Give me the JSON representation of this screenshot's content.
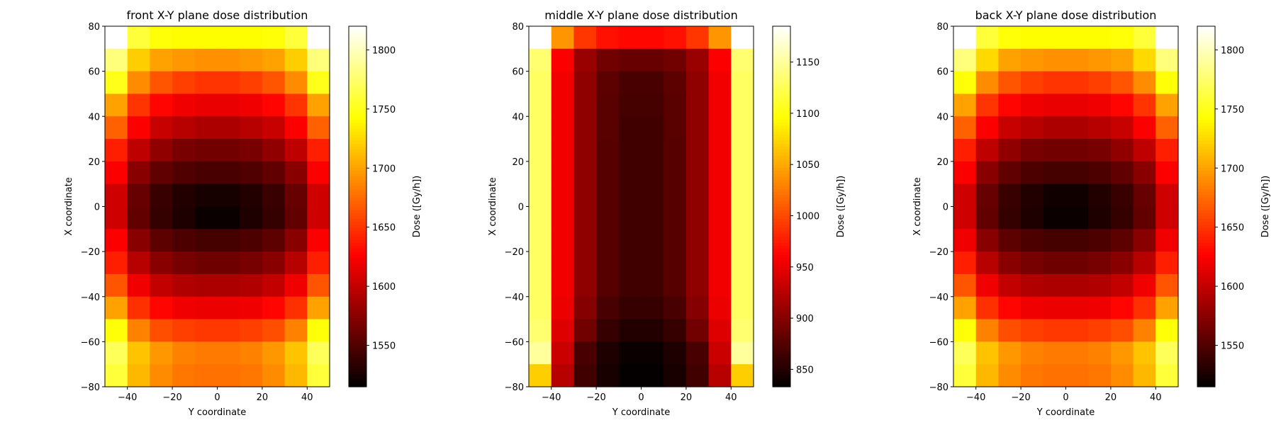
{
  "chart_data": [
    {
      "type": "heatmap",
      "title": "front X-Y plane dose distribution",
      "xlabel": "Y coordinate",
      "ylabel": "X coordinate",
      "colorbar_label": "Dose ([Gy/h])",
      "colormap": "hot",
      "xlim": [
        -50,
        50
      ],
      "ylim": [
        -80,
        80
      ],
      "xticks": [
        -40,
        -20,
        0,
        20,
        40
      ],
      "yticks": [
        -80,
        -60,
        -40,
        -20,
        0,
        20,
        40,
        60,
        80
      ],
      "colorbar_range": [
        1515,
        1820
      ],
      "colorbar_ticks": [
        1550,
        1600,
        1650,
        1700,
        1750,
        1800
      ],
      "cell_size": [
        10,
        10
      ],
      "rows_top_to_bottom": [
        [
          1820,
          1760,
          1745,
          1742,
          1742,
          1742,
          1742,
          1745,
          1760,
          1820
        ],
        [
          1780,
          1720,
          1700,
          1695,
          1692,
          1692,
          1695,
          1700,
          1720,
          1780
        ],
        [
          1750,
          1690,
          1665,
          1655,
          1650,
          1650,
          1655,
          1665,
          1690,
          1750
        ],
        [
          1700,
          1650,
          1628,
          1620,
          1617,
          1617,
          1620,
          1628,
          1650,
          1700
        ],
        [
          1670,
          1625,
          1602,
          1595,
          1590,
          1590,
          1595,
          1602,
          1625,
          1670
        ],
        [
          1640,
          1598,
          1578,
          1568,
          1565,
          1565,
          1568,
          1578,
          1598,
          1640
        ],
        [
          1625,
          1575,
          1557,
          1550,
          1547,
          1547,
          1550,
          1557,
          1575,
          1625
        ],
        [
          1605,
          1560,
          1540,
          1530,
          1525,
          1525,
          1530,
          1540,
          1560,
          1605
        ],
        [
          1605,
          1558,
          1538,
          1528,
          1520,
          1520,
          1528,
          1538,
          1558,
          1605
        ],
        [
          1625,
          1575,
          1555,
          1548,
          1545,
          1545,
          1548,
          1555,
          1575,
          1625
        ],
        [
          1640,
          1595,
          1575,
          1567,
          1563,
          1563,
          1567,
          1575,
          1595,
          1640
        ],
        [
          1665,
          1620,
          1600,
          1592,
          1590,
          1590,
          1592,
          1600,
          1620,
          1665
        ],
        [
          1700,
          1648,
          1628,
          1620,
          1618,
          1618,
          1620,
          1628,
          1648,
          1700
        ],
        [
          1745,
          1685,
          1662,
          1655,
          1652,
          1652,
          1655,
          1662,
          1685,
          1745
        ],
        [
          1770,
          1715,
          1695,
          1685,
          1682,
          1682,
          1685,
          1695,
          1715,
          1770
        ],
        [
          1760,
          1710,
          1690,
          1680,
          1678,
          1678,
          1680,
          1690,
          1710,
          1760
        ]
      ]
    },
    {
      "type": "heatmap",
      "title": "middle X-Y plane dose distribution",
      "xlabel": "Y coordinate",
      "ylabel": "X coordinate",
      "colorbar_label": "Dose ([Gy/h])",
      "colormap": "hot",
      "xlim": [
        -50,
        50
      ],
      "ylim": [
        -80,
        80
      ],
      "xticks": [
        -40,
        -20,
        0,
        20,
        40
      ],
      "yticks": [
        -80,
        -60,
        -40,
        -20,
        0,
        20,
        40,
        60,
        80
      ],
      "colorbar_range": [
        833,
        1185
      ],
      "colorbar_ticks": [
        850,
        900,
        950,
        1000,
        1050,
        1100,
        1150
      ],
      "cell_size": [
        10,
        10
      ],
      "rows_top_to_bottom": [
        [
          1185,
          1040,
          990,
          970,
          965,
          965,
          970,
          990,
          1040,
          1185
        ],
        [
          1135,
          960,
          910,
          890,
          885,
          885,
          890,
          910,
          960,
          1135
        ],
        [
          1130,
          955,
          905,
          880,
          870,
          870,
          880,
          905,
          955,
          1130
        ],
        [
          1130,
          955,
          905,
          878,
          868,
          868,
          878,
          905,
          955,
          1130
        ],
        [
          1130,
          955,
          905,
          878,
          866,
          866,
          878,
          905,
          955,
          1130
        ],
        [
          1130,
          955,
          905,
          877,
          865,
          865,
          877,
          905,
          955,
          1130
        ],
        [
          1130,
          955,
          905,
          877,
          865,
          865,
          877,
          905,
          955,
          1130
        ],
        [
          1130,
          955,
          905,
          877,
          865,
          865,
          877,
          905,
          955,
          1130
        ],
        [
          1130,
          955,
          905,
          877,
          865,
          865,
          877,
          905,
          955,
          1130
        ],
        [
          1130,
          955,
          905,
          877,
          865,
          865,
          877,
          905,
          955,
          1130
        ],
        [
          1130,
          955,
          905,
          877,
          865,
          865,
          877,
          905,
          955,
          1130
        ],
        [
          1130,
          955,
          905,
          877,
          865,
          865,
          877,
          905,
          955,
          1130
        ],
        [
          1130,
          952,
          900,
          870,
          860,
          860,
          870,
          900,
          952,
          1130
        ],
        [
          1135,
          945,
          890,
          860,
          850,
          850,
          860,
          890,
          945,
          1135
        ],
        [
          1150,
          935,
          870,
          848,
          838,
          838,
          848,
          870,
          935,
          1150
        ],
        [
          1070,
          925,
          865,
          845,
          835,
          835,
          845,
          865,
          925,
          1070
        ]
      ]
    },
    {
      "type": "heatmap",
      "title": "back X-Y plane dose distribution",
      "xlabel": "Y coordinate",
      "ylabel": "X coordinate",
      "colorbar_label": "Dose ([Gy/h])",
      "colormap": "hot",
      "xlim": [
        -50,
        50
      ],
      "ylim": [
        -80,
        80
      ],
      "xticks": [
        -40,
        -20,
        0,
        20,
        40
      ],
      "yticks": [
        -80,
        -60,
        -40,
        -20,
        0,
        20,
        40,
        60,
        80
      ],
      "colorbar_range": [
        1515,
        1820
      ],
      "colorbar_ticks": [
        1550,
        1600,
        1650,
        1700,
        1750,
        1800
      ],
      "cell_size": [
        10,
        10
      ],
      "rows_top_to_bottom": [
        [
          1820,
          1760,
          1745,
          1742,
          1742,
          1742,
          1742,
          1745,
          1760,
          1820
        ],
        [
          1780,
          1725,
          1700,
          1695,
          1692,
          1692,
          1695,
          1700,
          1725,
          1780
        ],
        [
          1745,
          1690,
          1665,
          1655,
          1650,
          1650,
          1655,
          1665,
          1690,
          1745
        ],
        [
          1700,
          1650,
          1628,
          1620,
          1617,
          1617,
          1620,
          1628,
          1650,
          1700
        ],
        [
          1670,
          1625,
          1602,
          1595,
          1590,
          1590,
          1595,
          1602,
          1625,
          1670
        ],
        [
          1640,
          1598,
          1578,
          1568,
          1565,
          1565,
          1568,
          1578,
          1598,
          1640
        ],
        [
          1625,
          1575,
          1557,
          1548,
          1545,
          1545,
          1548,
          1557,
          1575,
          1625
        ],
        [
          1605,
          1560,
          1540,
          1530,
          1522,
          1522,
          1530,
          1540,
          1560,
          1605
        ],
        [
          1605,
          1558,
          1538,
          1528,
          1520,
          1520,
          1528,
          1538,
          1558,
          1605
        ],
        [
          1620,
          1575,
          1555,
          1548,
          1545,
          1545,
          1548,
          1555,
          1575,
          1620
        ],
        [
          1640,
          1595,
          1575,
          1567,
          1563,
          1563,
          1567,
          1575,
          1595,
          1640
        ],
        [
          1665,
          1620,
          1600,
          1592,
          1590,
          1590,
          1592,
          1600,
          1620,
          1665
        ],
        [
          1700,
          1648,
          1628,
          1620,
          1618,
          1618,
          1620,
          1628,
          1648,
          1700
        ],
        [
          1745,
          1685,
          1662,
          1655,
          1652,
          1652,
          1655,
          1662,
          1685,
          1745
        ],
        [
          1770,
          1715,
          1695,
          1685,
          1682,
          1682,
          1685,
          1695,
          1715,
          1770
        ],
        [
          1760,
          1710,
          1690,
          1680,
          1678,
          1678,
          1680,
          1690,
          1710,
          1760
        ]
      ]
    }
  ]
}
